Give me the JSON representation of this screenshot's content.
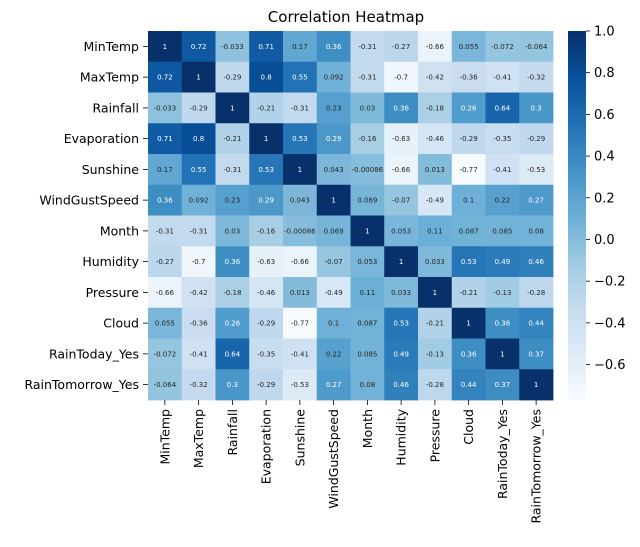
{
  "chart_data": {
    "type": "heatmap",
    "title": "Correlation Heatmap",
    "rows": [
      "MinTemp",
      "MaxTemp",
      "Rainfall",
      "Evaporation",
      "Sunshine",
      "WindGustSpeed",
      "Month",
      "Humidity",
      "Pressure",
      "Cloud",
      "RainToday_Yes",
      "RainTomorrow_Yes"
    ],
    "cols": [
      "MinTemp",
      "MaxTemp",
      "Rainfall",
      "Evaporation",
      "Sunshine",
      "WindGustSpeed",
      "Month",
      "Humidity",
      "Pressure",
      "Cloud",
      "RainToday_Yes",
      "RainTomorrow_Yes"
    ],
    "values": [
      [
        1,
        0.72,
        -0.033,
        0.71,
        0.17,
        0.36,
        -0.31,
        -0.27,
        -0.66,
        0.055,
        -0.072,
        -0.064
      ],
      [
        0.72,
        1,
        -0.29,
        0.8,
        0.55,
        0.092,
        -0.31,
        -0.7,
        -0.42,
        -0.36,
        -0.41,
        -0.32
      ],
      [
        -0.033,
        -0.29,
        1,
        -0.21,
        -0.31,
        0.23,
        0.03,
        0.36,
        -0.18,
        0.26,
        0.64,
        0.3
      ],
      [
        0.71,
        0.8,
        -0.21,
        1,
        0.53,
        0.29,
        -0.16,
        -0.63,
        -0.46,
        -0.29,
        -0.35,
        -0.29
      ],
      [
        0.17,
        0.55,
        -0.31,
        0.53,
        1,
        0.043,
        -0.00086,
        -0.66,
        0.013,
        -0.77,
        -0.41,
        -0.53
      ],
      [
        0.36,
        0.092,
        0.23,
        0.29,
        0.043,
        1,
        0.069,
        -0.07,
        -0.49,
        0.1,
        0.22,
        0.27
      ],
      [
        -0.31,
        -0.31,
        0.03,
        -0.16,
        -0.00086,
        0.069,
        1,
        0.053,
        0.11,
        0.087,
        0.085,
        0.08
      ],
      [
        -0.27,
        -0.7,
        0.36,
        -0.63,
        -0.66,
        -0.07,
        0.053,
        1,
        0.033,
        0.53,
        0.49,
        0.46
      ],
      [
        -0.66,
        -0.42,
        -0.18,
        -0.46,
        0.013,
        -0.49,
        0.11,
        0.033,
        1,
        -0.21,
        -0.13,
        -0.28
      ],
      [
        0.055,
        -0.36,
        0.26,
        -0.29,
        -0.77,
        0.1,
        0.087,
        0.53,
        -0.21,
        1,
        0.36,
        0.44
      ],
      [
        -0.072,
        -0.41,
        0.64,
        -0.35,
        -0.41,
        0.22,
        0.085,
        0.49,
        -0.13,
        0.36,
        1,
        0.37
      ],
      [
        -0.064,
        -0.32,
        0.3,
        -0.29,
        -0.53,
        0.27,
        0.08,
        0.46,
        -0.28,
        0.44,
        0.37,
        1
      ]
    ],
    "colorbar": {
      "colormap": "Blues",
      "vmin": -0.77,
      "vmax": 1,
      "ticks": [
        1.0,
        0.8,
        0.6,
        0.4,
        0.2,
        0.0,
        -0.2,
        -0.4,
        -0.6
      ],
      "tick_labels": [
        "1.0",
        "0.8",
        "0.6",
        "0.4",
        "0.2",
        "0.0",
        "−0.2",
        "−0.4",
        "−0.6"
      ]
    },
    "colors": [
      "#f7fbff",
      "#deebf7",
      "#c6dbef",
      "#9ecae1",
      "#6baed6",
      "#4292c6",
      "#2171b5",
      "#08519c",
      "#08306b"
    ],
    "annotations": "cell values printed in each cell"
  }
}
